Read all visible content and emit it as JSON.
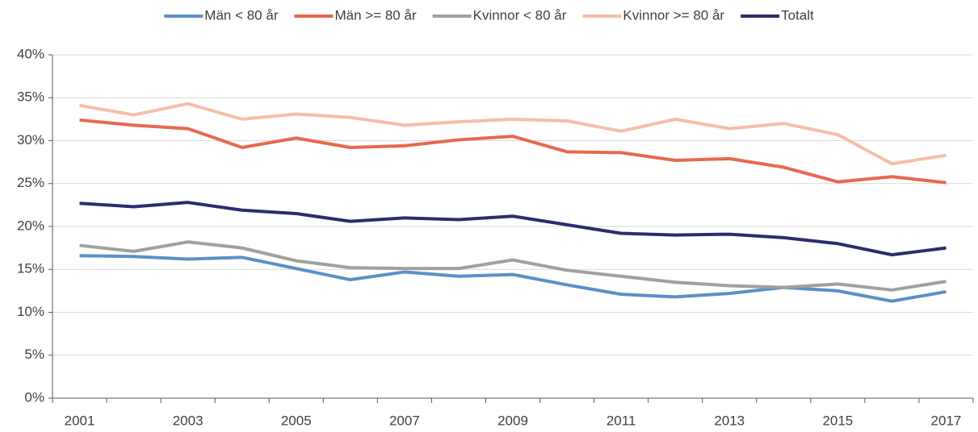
{
  "chart_data": {
    "type": "line",
    "categories": [
      "2001",
      null,
      "2003",
      null,
      "2005",
      null,
      "2007",
      null,
      "2009",
      null,
      "2011",
      null,
      "2013",
      null,
      "2015",
      null,
      "2017"
    ],
    "series": [
      {
        "name": "Män < 80 år",
        "color": "#5b8fc9",
        "values": [
          16.6,
          16.5,
          16.2,
          16.4,
          15.1,
          13.8,
          14.7,
          14.2,
          14.4,
          13.2,
          12.1,
          11.8,
          12.2,
          12.9,
          12.5,
          11.3,
          12.4
        ]
      },
      {
        "name": "Män >= 80 år",
        "color": "#e8684e",
        "values": [
          32.4,
          31.8,
          31.4,
          29.2,
          30.3,
          29.2,
          29.4,
          30.1,
          30.5,
          28.7,
          28.6,
          27.7,
          27.9,
          26.9,
          25.2,
          25.8,
          25.1
        ]
      },
      {
        "name": "Kvinnor < 80 år",
        "color": "#a0a0a0",
        "values": [
          17.8,
          17.1,
          18.2,
          17.5,
          16.0,
          15.2,
          15.1,
          15.1,
          16.1,
          14.9,
          14.2,
          13.5,
          13.1,
          12.9,
          13.3,
          12.6,
          13.6
        ]
      },
      {
        "name": "Kvinnor >= 80 år",
        "color": "#f4bfaa",
        "values": [
          34.1,
          33.0,
          34.3,
          32.5,
          33.1,
          32.7,
          31.8,
          32.2,
          32.5,
          32.3,
          31.1,
          32.5,
          31.4,
          32.0,
          30.7,
          27.3,
          28.3
        ]
      },
      {
        "name": "Totalt",
        "color": "#2b2d6e",
        "values": [
          22.7,
          22.3,
          22.8,
          21.9,
          21.5,
          20.6,
          21.0,
          20.8,
          21.2,
          20.2,
          19.2,
          19.0,
          19.1,
          18.7,
          18.0,
          16.7,
          17.5
        ]
      }
    ],
    "ylim": [
      0,
      40
    ],
    "yticks": [
      {
        "value": 0,
        "label": "0%"
      },
      {
        "value": 5,
        "label": "5%"
      },
      {
        "value": 10,
        "label": "10%"
      },
      {
        "value": 15,
        "label": "15%"
      },
      {
        "value": 20,
        "label": "20%"
      },
      {
        "value": 25,
        "label": "25%"
      },
      {
        "value": 30,
        "label": "30%"
      },
      {
        "value": 35,
        "label": "35%"
      },
      {
        "value": 40,
        "label": "40%"
      }
    ],
    "grid": true,
    "legend": "top"
  }
}
